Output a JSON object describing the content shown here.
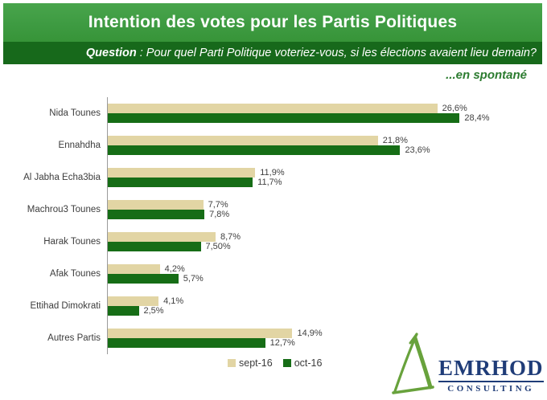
{
  "header": {
    "title": "Intention des votes pour les Partis Politiques",
    "question_label": "Question",
    "question_rest": ":  Pour quel Parti Politique voteriez-vous, si les élections avaient lieu demain?",
    "subtitle": "...en spontané"
  },
  "chart_data": {
    "type": "bar",
    "orientation": "horizontal",
    "title": "Intention des votes pour les Partis Politiques",
    "xlabel": "",
    "ylabel": "",
    "xlim": [
      0,
      30
    ],
    "grid": false,
    "legend_position": "bottom-center",
    "categories": [
      "Nida Tounes",
      "Ennahdha",
      "Al Jabha Echa3bia",
      "Machrou3 Tounes",
      "Harak Tounes",
      "Afak Tounes",
      "Ettihad Dimokrati",
      "Autres Partis"
    ],
    "series": [
      {
        "name": "sept-16",
        "color": "#E2D5A4",
        "values": [
          26.6,
          21.8,
          11.9,
          7.7,
          8.7,
          4.2,
          4.1,
          14.9
        ],
        "labels": [
          "26,6%",
          "21,8%",
          "11,9%",
          "7,7%",
          "8,7%",
          "4,2%",
          "4,1%",
          "14,9%"
        ]
      },
      {
        "name": "oct-16",
        "color": "#166D16",
        "values": [
          28.4,
          23.6,
          11.7,
          7.8,
          7.5,
          5.7,
          2.5,
          12.7
        ],
        "labels": [
          "28,4%",
          "23,6%",
          "11,7%",
          "7,8%",
          "7,50%",
          "5,7%",
          "2,5%",
          "12,7%"
        ]
      }
    ]
  },
  "legend": {
    "items": [
      {
        "label": "sept-16",
        "color": "#E2D5A4"
      },
      {
        "label": "oct-16",
        "color": "#166D16"
      }
    ]
  },
  "logo": {
    "name": "EMRHOD",
    "subname": "CONSULTING",
    "text_color": "#1F3C78",
    "triangle_color": "#68A23C"
  },
  "colors": {
    "banner_green": "#3E9B42",
    "question_band_green": "#17691B",
    "subtitle_green": "#2C7C30",
    "axis_gray": "#9A9A9A",
    "label_gray": "#3C3C3C"
  }
}
